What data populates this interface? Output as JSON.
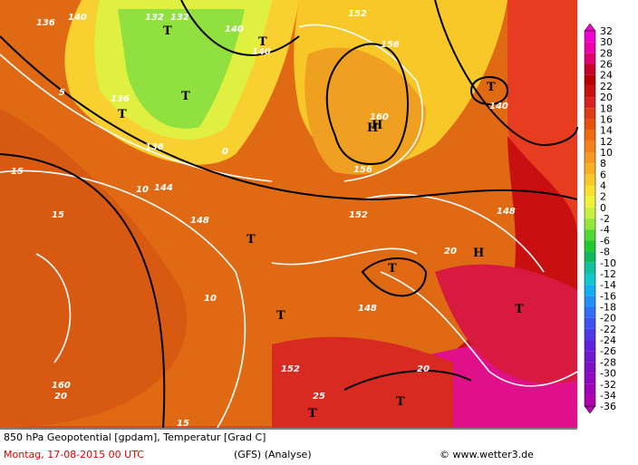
{
  "map": {
    "labels": [
      "136",
      "140",
      "132",
      "132",
      "140",
      "140",
      "T",
      "T",
      "T",
      "T",
      "136",
      "136",
      "152",
      "156",
      "H",
      "160",
      "156",
      "T",
      "140",
      "144",
      "148",
      "152",
      "148",
      "15",
      "10",
      "5",
      "0",
      "H",
      "T",
      "H",
      "T",
      "15",
      "10",
      "20",
      "T",
      "T",
      "20",
      "25",
      "T",
      "148",
      "152",
      "160",
      "20",
      "15",
      "T"
    ],
    "colorbar": {
      "labels": [
        32,
        30,
        28,
        26,
        24,
        22,
        20,
        18,
        16,
        14,
        12,
        10,
        8,
        6,
        4,
        2,
        0,
        -2,
        -4,
        -6,
        -8,
        -10,
        -12,
        -14,
        -16,
        -18,
        -20,
        -22,
        -24,
        -26,
        -28,
        -30,
        -32,
        -34,
        -36
      ],
      "colors": [
        "#f000d0",
        "#f000a8",
        "#e0006e",
        "#c80028",
        "#b80000",
        "#c81010",
        "#d82020",
        "#e03c14",
        "#e85010",
        "#f06810",
        "#f88018",
        "#f89820",
        "#f8b020",
        "#f8c828",
        "#f8e030",
        "#f0f038",
        "#c8f040",
        "#90e838",
        "#50d830",
        "#20c830",
        "#10b860",
        "#10c0a0",
        "#10c8d0",
        "#10b0f0",
        "#2090f8",
        "#3070f8",
        "#4050f0",
        "#5038e8",
        "#6020e0",
        "#7018d0",
        "#8010c8",
        "#9008c0",
        "#a000b8",
        "#b000b0"
      ]
    },
    "footer": {
      "title": "850 hPa Geopotential [gpdam], Temperatur [Grad C]",
      "date": "Montag, 17-08-2015  00 UTC",
      "model": "(GFS)  (Analyse)",
      "credit": "© www.wetter3.de"
    }
  }
}
